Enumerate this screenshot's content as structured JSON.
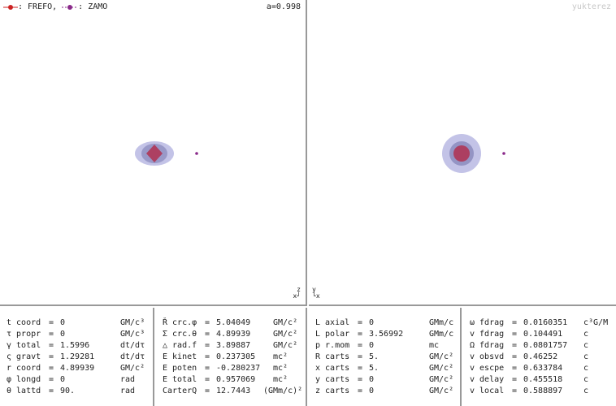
{
  "legend": {
    "frefo_label": ": FREFO,",
    "zamo_label": ": ZAMO",
    "frefo_color": "#cc2222",
    "zamo_color": "#8a2a8a"
  },
  "spin_label": "a=0.998",
  "credit": "yukterez",
  "axes_left": {
    "top": "z",
    "bottom": "x"
  },
  "axes_right": {
    "top": "y",
    "bottom": "x"
  },
  "colors": {
    "horizon": "#b03050",
    "ergosphere": "#8888cc",
    "particle": "#8a2a8a"
  },
  "panels": [
    {
      "rows": [
        {
          "label": "t coord",
          "value": "0",
          "unit": "GM/c³"
        },
        {
          "label": "τ propr",
          "value": "0",
          "unit": "GM/c³"
        },
        {
          "label": "γ total",
          "value": "1.5996",
          "unit": "dt/dτ"
        },
        {
          "label": "ς gravt",
          "value": "1.29281",
          "unit": "dt/dτ"
        },
        {
          "label": "r coord",
          "value": "4.89939",
          "unit": "GM/c²"
        },
        {
          "label": "φ longd",
          "value": "0",
          "unit": "rad"
        },
        {
          "label": "θ lattd",
          "value": "90.",
          "unit": "rad"
        }
      ]
    },
    {
      "rows": [
        {
          "label": "Ř crc.φ",
          "value": "5.04049",
          "unit": "GM/c²"
        },
        {
          "label": "Σ crc.θ",
          "value": "4.89939",
          "unit": "GM/c²"
        },
        {
          "label": "△ rad.f",
          "value": "3.89887",
          "unit": "GM/c²"
        },
        {
          "label": "E kinet",
          "value": "0.237305",
          "unit": "mc²"
        },
        {
          "label": "E poten",
          "value": "-0.280237",
          "unit": "mc²"
        },
        {
          "label": "E total",
          "value": "0.957069",
          "unit": "mc²"
        },
        {
          "label": "CarterQ",
          "value": "12.7443",
          "unit": "(GMm/c)²"
        }
      ]
    },
    {
      "rows": [
        {
          "label": "L axial",
          "value": "0",
          "unit": "GMm/c"
        },
        {
          "label": "L polar",
          "value": "3.56992",
          "unit": "GMm/c"
        },
        {
          "label": "p r.mom",
          "value": "0",
          "unit": "mc"
        },
        {
          "label": "R carts",
          "value": "5.",
          "unit": "GM/c²"
        },
        {
          "label": "x carts",
          "value": "5.",
          "unit": "GM/c²"
        },
        {
          "label": "y carts",
          "value": "0",
          "unit": "GM/c²"
        },
        {
          "label": "z carts",
          "value": "0",
          "unit": "GM/c²"
        }
      ]
    },
    {
      "rows": [
        {
          "label": "ω fdrag",
          "value": "0.0160351",
          "unit": "c³G/M"
        },
        {
          "label": "v fdrag",
          "value": "0.104491",
          "unit": "c"
        },
        {
          "label": "Ω fdrag",
          "value": "0.0801757",
          "unit": "c"
        },
        {
          "label": "v obsvd",
          "value": "0.46252",
          "unit": "c"
        },
        {
          "label": "v escpe",
          "value": "0.633784",
          "unit": "c"
        },
        {
          "label": "v delay",
          "value": "0.455518",
          "unit": "c"
        },
        {
          "label": "v local",
          "value": "0.588897",
          "unit": "c"
        }
      ]
    }
  ]
}
